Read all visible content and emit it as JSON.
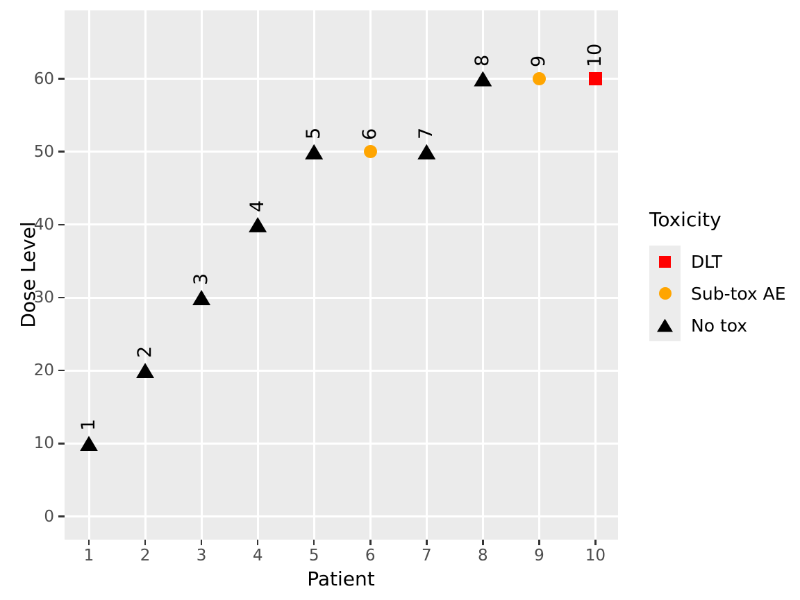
{
  "chart_data": {
    "type": "scatter",
    "title": "",
    "xlabel": "Patient",
    "ylabel": "Dose Level",
    "x_ticks": [
      1,
      2,
      3,
      4,
      5,
      6,
      7,
      8,
      9,
      10
    ],
    "y_ticks": [
      0,
      10,
      20,
      30,
      40,
      50,
      60
    ],
    "xlim": [
      0.55,
      10.45
    ],
    "ylim": [
      -3,
      69.5
    ],
    "grid": "major only, white on grey panel",
    "point_label_rotation_deg": 90,
    "legend": {
      "title": "Toxicity",
      "position": "right",
      "entries": [
        {
          "label": "DLT",
          "shape": "square",
          "color": "#FF0000"
        },
        {
          "label": "Sub-tox AE",
          "shape": "circle",
          "color": "#FFA500"
        },
        {
          "label": "No tox",
          "shape": "triangle",
          "color": "#000000"
        }
      ]
    },
    "points": [
      {
        "patient": 1,
        "dose": 10,
        "toxicity": "No tox",
        "label": "1"
      },
      {
        "patient": 2,
        "dose": 20,
        "toxicity": "No tox",
        "label": "2"
      },
      {
        "patient": 3,
        "dose": 30,
        "toxicity": "No tox",
        "label": "3"
      },
      {
        "patient": 4,
        "dose": 40,
        "toxicity": "No tox",
        "label": "4"
      },
      {
        "patient": 5,
        "dose": 50,
        "toxicity": "No tox",
        "label": "5"
      },
      {
        "patient": 6,
        "dose": 50,
        "toxicity": "Sub-tox AE",
        "label": "6"
      },
      {
        "patient": 7,
        "dose": 50,
        "toxicity": "No tox",
        "label": "7"
      },
      {
        "patient": 8,
        "dose": 60,
        "toxicity": "No tox",
        "label": "8"
      },
      {
        "patient": 9,
        "dose": 60,
        "toxicity": "Sub-tox AE",
        "label": "9"
      },
      {
        "patient": 10,
        "dose": 60,
        "toxicity": "DLT",
        "label": "10"
      }
    ],
    "colors": {
      "panel_bg": "#EBEBEB",
      "gridline": "#FFFFFF",
      "tick_label": "#4D4D4D",
      "tick_mark": "#333333",
      "text": "#000000",
      "legend_key_bg": "#ECECEC"
    }
  }
}
